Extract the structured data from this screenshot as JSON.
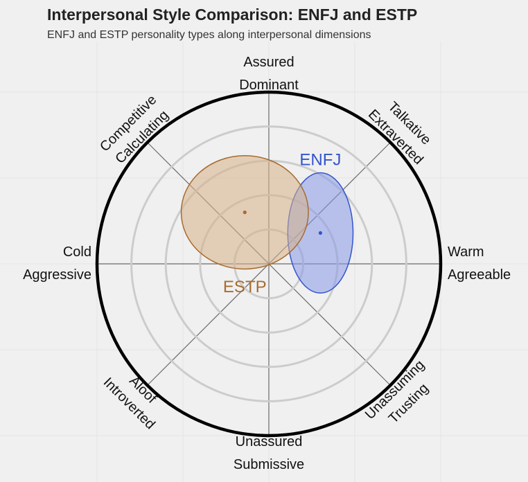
{
  "header": {
    "title": "Interpersonal Style Comparison: ENFJ and ESTP",
    "subtitle": "ENFJ and ESTP personality types along interpersonal dimensions"
  },
  "chart_data": {
    "type": "scatter",
    "title": "Interpersonal Style Comparison: ENFJ and ESTP",
    "subtitle": "ENFJ and ESTP personality types along interpersonal dimensions",
    "axis_labels": [
      {
        "id": "top",
        "lines": [
          "Assured",
          "Dominant"
        ]
      },
      {
        "id": "top-right",
        "lines": [
          "Talkative",
          "Extraverted"
        ]
      },
      {
        "id": "right",
        "lines": [
          "Warm",
          "Agreeable"
        ]
      },
      {
        "id": "bottom-right",
        "lines": [
          "Unassuming",
          "Trusting"
        ]
      },
      {
        "id": "bottom",
        "lines": [
          "Unassured",
          "Submissive"
        ]
      },
      {
        "id": "bottom-left",
        "lines": [
          "Aloof",
          "Introverted"
        ]
      },
      {
        "id": "left",
        "lines": [
          "Cold",
          "Aggressive"
        ]
      },
      {
        "id": "top-left",
        "lines": [
          "Competitive",
          "Calculating"
        ]
      }
    ],
    "x_range": [
      -1,
      1
    ],
    "y_range": [
      -1,
      1
    ],
    "rings": [
      0.2,
      0.4,
      0.6,
      0.8,
      1.0
    ],
    "grid": true,
    "series": [
      {
        "name": "ENFJ",
        "color": "#3355cc",
        "fill": "#8899e6",
        "center": {
          "x": 0.3,
          "y": 0.18
        },
        "radius": {
          "x": 0.19,
          "y": 0.35
        }
      },
      {
        "name": "ESTP",
        "color": "#a86b2e",
        "fill": "#d7b088",
        "center": {
          "x": -0.14,
          "y": 0.3
        },
        "radius": {
          "x": 0.37,
          "y": 0.33
        }
      }
    ]
  }
}
